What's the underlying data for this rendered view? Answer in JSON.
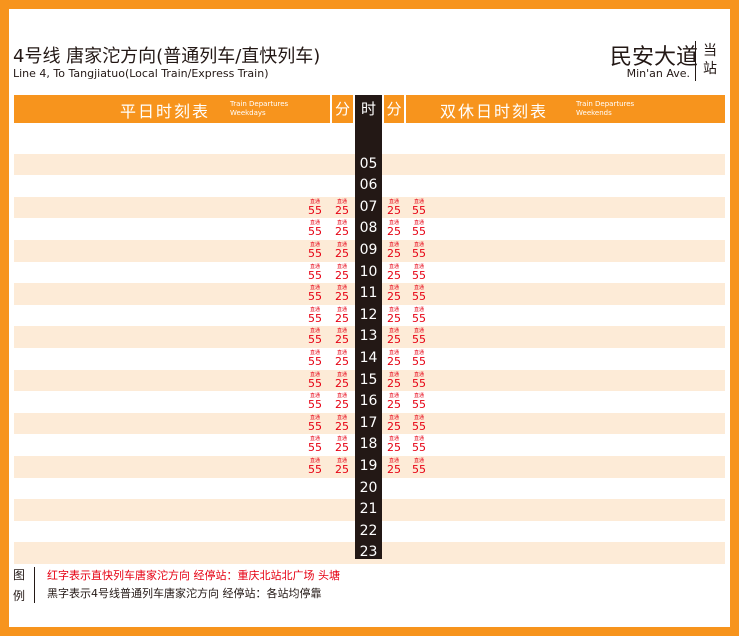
{
  "header": {
    "line_title": "4号线 唐家沱方向(普通列车/直快列车)",
    "line_subtitle": "Line 4, To Tangjiatuo(Local Train/Express Train)",
    "station_name": "民安大道",
    "station_name_en": "Min'an Ave.",
    "current_station_label": "当站"
  },
  "columns": {
    "weekday_title": "平日时刻表",
    "weekday_en": "Train Departures\nWeekdays",
    "weekend_title": "双休日时刻表",
    "weekend_en": "Train Departures\nWeekends",
    "minute_label": "分",
    "hour_label": "时"
  },
  "colors": {
    "accent": "#f7941d",
    "stripe": "#fdebd7",
    "hour_bg": "#231815",
    "express": "#e60012"
  },
  "hours": [
    {
      "hour": "05",
      "weekday": [],
      "weekend": []
    },
    {
      "hour": "06",
      "weekday": [],
      "weekend": []
    },
    {
      "hour": "07",
      "weekday": [
        {
          "via": "直通",
          "min": "55"
        },
        {
          "via": "直通",
          "min": "25"
        }
      ],
      "weekend": [
        {
          "via": "直通",
          "min": "25"
        },
        {
          "via": "直通",
          "min": "55"
        }
      ]
    },
    {
      "hour": "08",
      "weekday": [
        {
          "via": "直通",
          "min": "55"
        },
        {
          "via": "直通",
          "min": "25"
        }
      ],
      "weekend": [
        {
          "via": "直通",
          "min": "25"
        },
        {
          "via": "直通",
          "min": "55"
        }
      ]
    },
    {
      "hour": "09",
      "weekday": [
        {
          "via": "直通",
          "min": "55"
        },
        {
          "via": "直通",
          "min": "25"
        }
      ],
      "weekend": [
        {
          "via": "直通",
          "min": "25"
        },
        {
          "via": "直通",
          "min": "55"
        }
      ]
    },
    {
      "hour": "10",
      "weekday": [
        {
          "via": "直通",
          "min": "55"
        },
        {
          "via": "直通",
          "min": "25"
        }
      ],
      "weekend": [
        {
          "via": "直通",
          "min": "25"
        },
        {
          "via": "直通",
          "min": "55"
        }
      ]
    },
    {
      "hour": "11",
      "weekday": [
        {
          "via": "直通",
          "min": "55"
        },
        {
          "via": "直通",
          "min": "25"
        }
      ],
      "weekend": [
        {
          "via": "直通",
          "min": "25"
        },
        {
          "via": "直通",
          "min": "55"
        }
      ]
    },
    {
      "hour": "12",
      "weekday": [
        {
          "via": "直通",
          "min": "55"
        },
        {
          "via": "直通",
          "min": "25"
        }
      ],
      "weekend": [
        {
          "via": "直通",
          "min": "25"
        },
        {
          "via": "直通",
          "min": "55"
        }
      ]
    },
    {
      "hour": "13",
      "weekday": [
        {
          "via": "直通",
          "min": "55"
        },
        {
          "via": "直通",
          "min": "25"
        }
      ],
      "weekend": [
        {
          "via": "直通",
          "min": "25"
        },
        {
          "via": "直通",
          "min": "55"
        }
      ]
    },
    {
      "hour": "14",
      "weekday": [
        {
          "via": "直通",
          "min": "55"
        },
        {
          "via": "直通",
          "min": "25"
        }
      ],
      "weekend": [
        {
          "via": "直通",
          "min": "25"
        },
        {
          "via": "直通",
          "min": "55"
        }
      ]
    },
    {
      "hour": "15",
      "weekday": [
        {
          "via": "直通",
          "min": "55"
        },
        {
          "via": "直通",
          "min": "25"
        }
      ],
      "weekend": [
        {
          "via": "直通",
          "min": "25"
        },
        {
          "via": "直通",
          "min": "55"
        }
      ]
    },
    {
      "hour": "16",
      "weekday": [
        {
          "via": "直通",
          "min": "55"
        },
        {
          "via": "直通",
          "min": "25"
        }
      ],
      "weekend": [
        {
          "via": "直通",
          "min": "25"
        },
        {
          "via": "直通",
          "min": "55"
        }
      ]
    },
    {
      "hour": "17",
      "weekday": [
        {
          "via": "直通",
          "min": "55"
        },
        {
          "via": "直通",
          "min": "25"
        }
      ],
      "weekend": [
        {
          "via": "直通",
          "min": "25"
        },
        {
          "via": "直通",
          "min": "55"
        }
      ]
    },
    {
      "hour": "18",
      "weekday": [
        {
          "via": "直通",
          "min": "55"
        },
        {
          "via": "直通",
          "min": "25"
        }
      ],
      "weekend": [
        {
          "via": "直通",
          "min": "25"
        },
        {
          "via": "直通",
          "min": "55"
        }
      ]
    },
    {
      "hour": "19",
      "weekday": [
        {
          "via": "直通",
          "min": "55"
        },
        {
          "via": "直通",
          "min": "25"
        }
      ],
      "weekend": [
        {
          "via": "直通",
          "min": "25"
        },
        {
          "via": "直通",
          "min": "55"
        }
      ]
    },
    {
      "hour": "20",
      "weekday": [],
      "weekend": []
    },
    {
      "hour": "21",
      "weekday": [],
      "weekend": []
    },
    {
      "hour": "22",
      "weekday": [],
      "weekend": []
    },
    {
      "hour": "23",
      "weekday": [],
      "weekend": []
    }
  ],
  "legend": {
    "label": "图例",
    "express_note": "红字表示直快列车唐家沱方向  经停站：重庆北站北广场 头塘",
    "local_note": "黑字表示4号线普通列车唐家沱方向  经停站：各站均停靠"
  }
}
